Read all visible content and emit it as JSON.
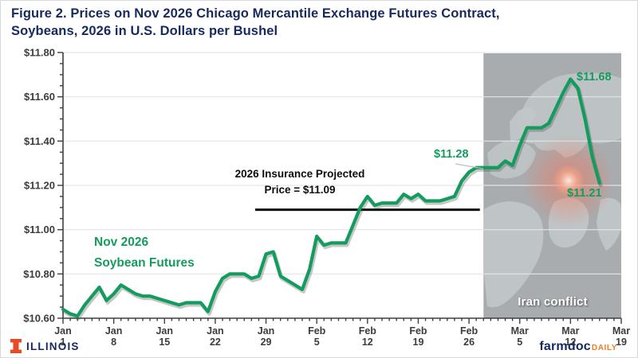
{
  "figure": {
    "title": "Figure 2.  Prices on Nov 2026 Chicago Mercantile Exchange Futures Contract,\nSoybeans, 2026 in U.S. Dollars per Bushel"
  },
  "branding": {
    "illinois_wordmark": "ILLINOIS",
    "farmdoc": "farmdoc",
    "daily": "DAILY",
    "illinois_orange": "#e84a27",
    "navy": "#172a5e",
    "daily_orange": "#f47d20"
  },
  "chart_data": {
    "type": "line",
    "title": "Prices on Nov 2026 Chicago Mercantile Exchange Futures Contract, Soybeans, 2026 in U.S. Dollars per Bushel",
    "series_name": "Nov 2026 Soybean Futures",
    "x_unit": "date (day 0 = Jan 1, 2026; one value per day)",
    "y_unit": "U.S. Dollars per Bushel",
    "xlim_days": [
      0,
      77
    ],
    "ylim": [
      10.6,
      11.8
    ],
    "y_tick_values": [
      10.6,
      10.8,
      11.0,
      11.2,
      11.4,
      11.6,
      11.8
    ],
    "y_tick_labels": [
      "$10.60",
      "$10.80",
      "$11.00",
      "$11.20",
      "$11.40",
      "$11.60",
      "$11.80"
    ],
    "y_minor_step": 0.05,
    "x_tick_days": [
      0,
      7,
      14,
      21,
      28,
      35,
      42,
      49,
      56,
      63,
      70,
      77
    ],
    "x_tick_labels": [
      [
        "Jan",
        "1"
      ],
      [
        "Jan",
        "8"
      ],
      [
        "Jan",
        "15"
      ],
      [
        "Jan",
        "22"
      ],
      [
        "Jan",
        "29"
      ],
      [
        "Feb",
        "5"
      ],
      [
        "Feb",
        "12"
      ],
      [
        "Feb",
        "19"
      ],
      [
        "Feb",
        "26"
      ],
      [
        "Mar",
        "5"
      ],
      [
        "Mar",
        "12"
      ],
      [
        "Mar",
        "19"
      ]
    ],
    "x_minor_step_days": 1,
    "grid": "horizontal-major-only",
    "line_color": "#149c5e",
    "values": [
      10.64,
      10.62,
      10.61,
      10.66,
      10.7,
      10.74,
      10.68,
      10.71,
      10.75,
      10.73,
      10.71,
      10.7,
      10.7,
      10.69,
      10.68,
      10.67,
      10.66,
      10.67,
      10.67,
      10.67,
      10.63,
      10.72,
      10.78,
      10.8,
      10.8,
      10.8,
      10.78,
      10.79,
      10.89,
      10.9,
      10.79,
      10.77,
      10.75,
      10.73,
      10.82,
      10.97,
      10.93,
      10.94,
      10.94,
      10.94,
      11.02,
      11.1,
      11.15,
      11.11,
      11.12,
      11.12,
      11.12,
      11.16,
      11.14,
      11.16,
      11.13,
      11.13,
      11.13,
      11.14,
      11.15,
      11.22,
      11.26,
      11.28,
      11.28,
      11.28,
      11.28,
      11.31,
      11.29,
      11.38,
      11.46,
      11.46,
      11.46,
      11.48,
      11.55,
      11.62,
      11.68,
      11.64,
      11.5,
      11.33,
      11.21
    ],
    "annotations": {
      "series_label": "Nov 2026\nSoybean Futures",
      "insurance_label": "2026 Insurance Projected\nPrice = $11.09",
      "insurance_line": {
        "value": 11.09,
        "start_day": 26.5,
        "end_day": 57.5,
        "color": "#0d0d0d"
      },
      "point_labels": [
        {
          "text": "$11.28",
          "day": 57,
          "value": 11.28
        },
        {
          "text": "$11.68",
          "day": 70,
          "value": 11.68
        },
        {
          "text": "$11.21",
          "day": 74,
          "value": 11.21
        }
      ],
      "shaded_region": {
        "start_day": 58,
        "end_day": 77,
        "label": "Iran conflict",
        "fill": "#a8acaf"
      }
    }
  }
}
